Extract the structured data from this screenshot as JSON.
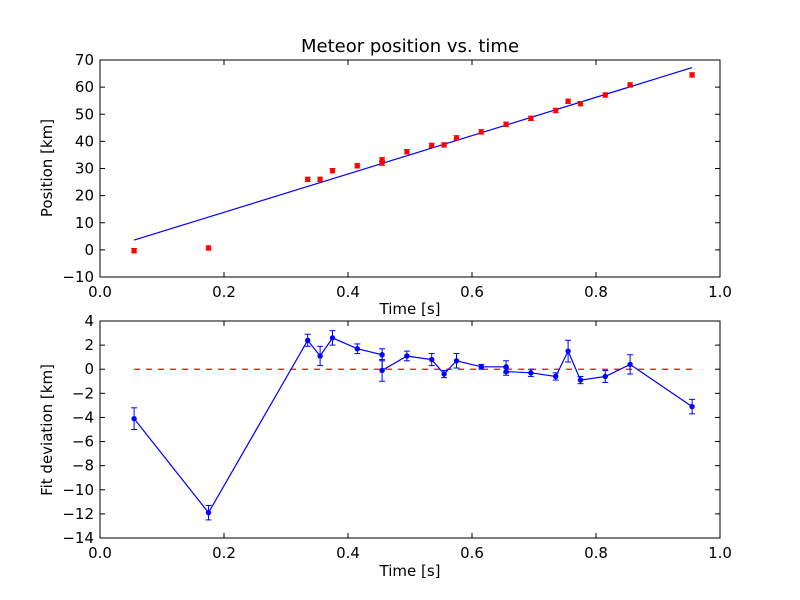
{
  "chart_data": [
    {
      "type": "scatter",
      "title": "Meteor position vs. time",
      "xlabel": "Time [s]",
      "ylabel": "Position [km]",
      "xlim": [
        0.0,
        1.0
      ],
      "ylim": [
        -10,
        70
      ],
      "xticks": [
        "0.0",
        "0.2",
        "0.4",
        "0.6",
        "0.8",
        "1.0"
      ],
      "yticks": [
        "−10",
        "0",
        "10",
        "20",
        "30",
        "40",
        "50",
        "60",
        "70"
      ],
      "grid": false,
      "colors": {
        "points": "#ff0000",
        "fit": "#0000ff"
      },
      "points": {
        "x": [
          0.055,
          0.175,
          0.335,
          0.355,
          0.375,
          0.415,
          0.455,
          0.455,
          0.495,
          0.535,
          0.555,
          0.575,
          0.615,
          0.655,
          0.695,
          0.735,
          0.755,
          0.775,
          0.815,
          0.855,
          0.955
        ],
        "y": [
          -0.3,
          0.7,
          26.0,
          26.0,
          29.2,
          31.0,
          33.2,
          32.0,
          36.2,
          38.5,
          38.7,
          41.3,
          43.5,
          46.3,
          48.5,
          51.4,
          54.8,
          53.9,
          57.1,
          60.8,
          64.5
        ],
        "err": [
          0.8,
          0.8,
          0.8,
          0.8,
          0.8,
          0.8,
          0.8,
          0.8,
          0.8,
          0.8,
          0.8,
          0.8,
          0.8,
          0.8,
          0.8,
          0.8,
          0.8,
          0.8,
          0.8,
          0.8,
          0.8
        ]
      },
      "fit_line": {
        "x": [
          0.055,
          0.955
        ],
        "y": [
          3.6,
          67.2
        ]
      }
    },
    {
      "type": "line",
      "title": "",
      "xlabel": "Time [s]",
      "ylabel": "Fit deviation [km]",
      "xlim": [
        0.0,
        1.0
      ],
      "ylim": [
        -14,
        4
      ],
      "xticks": [
        "0.0",
        "0.2",
        "0.4",
        "0.6",
        "0.8",
        "1.0"
      ],
      "yticks": [
        "−14",
        "−12",
        "−10",
        "−8",
        "−6",
        "−4",
        "−2",
        "0",
        "2",
        "4"
      ],
      "grid": false,
      "colors": {
        "series": "#0000ff",
        "zero_line": "#ff0000"
      },
      "zero_line": {
        "y": 0,
        "style": "dashed",
        "x": [
          0.055,
          0.955
        ]
      },
      "series": {
        "x": [
          0.055,
          0.175,
          0.335,
          0.355,
          0.375,
          0.415,
          0.455,
          0.455,
          0.495,
          0.535,
          0.555,
          0.575,
          0.615,
          0.655,
          0.655,
          0.695,
          0.735,
          0.755,
          0.775,
          0.815,
          0.855,
          0.955
        ],
        "y": [
          -4.1,
          -11.9,
          2.4,
          1.1,
          2.6,
          1.7,
          1.2,
          -0.1,
          1.1,
          0.8,
          -0.4,
          0.7,
          0.2,
          0.2,
          -0.2,
          -0.3,
          -0.6,
          1.5,
          -0.9,
          -0.6,
          0.4,
          -3.1
        ],
        "err": [
          0.9,
          0.6,
          0.5,
          0.8,
          0.6,
          0.4,
          0.5,
          0.9,
          0.4,
          0.5,
          0.3,
          0.6,
          0.2,
          0.5,
          0.3,
          0.3,
          0.3,
          0.9,
          0.3,
          0.5,
          0.8,
          0.6
        ]
      }
    }
  ]
}
